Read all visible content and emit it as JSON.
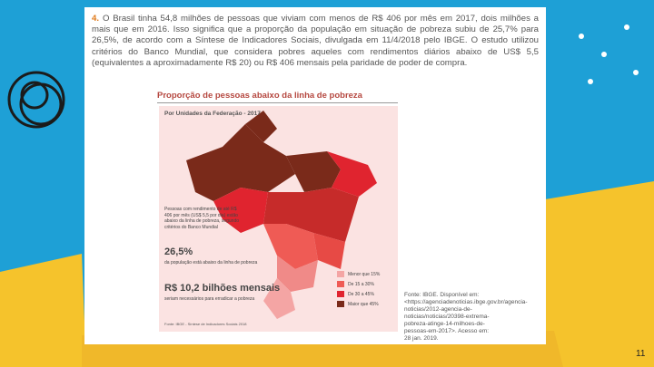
{
  "question": {
    "number": "4.",
    "text": "O Brasil tinha 54,8 milhões de pessoas que viviam com menos de R$ 406 por mês em 2017, dois milhões a mais que em 2016. Isso significa que a proporção da população em situação de pobreza subiu de 25,7% para 26,5%, de acordo com a Síntese de Indicadores Sociais, divulgada em 11/4/2018 pelo IBGE. O estudo utilizou critérios do Banco Mundial, que considera pobres aqueles com rendimentos diários abaixo de US$ 5,5 (equivalentes a aproximadamente R$ 20) ou R$ 406 mensais pela paridade de poder de compra."
  },
  "figure": {
    "title": "Proporção de pessoas abaixo da linha de pobreza",
    "subtitle": "Por Unidades da Federação - 2017",
    "note": "Pessoas com rendimento de até R$ 406 por mês (US$ 5,5 por dia) estão abaixo da linha de pobreza, segundo critérios do Banco Mundial",
    "stat_value": "26,5%",
    "stat_label": "da população está abaixo da linha de pobreza",
    "cost_value": "R$ 10,2 bilhões mensais",
    "cost_label": "seriam necessários para erradicar a pobreza",
    "legend": [
      "Menor que 15%",
      "De 15 a 30%",
      "De 30 a 45%",
      "Maior que 45%"
    ],
    "footer": "Fonte: IBGE - Síntese de Indicadores Sociais 2018"
  },
  "source": "Fonte: IBGE. Disponível em: <https://agenciadenoticias.ibge.gov.br/agencia-noticias/2012-agencia-de-noticias/noticias/20398-extrema-pobreza-atinge-14-milhoes-de-pessoas-em-2017>. Acesso em: 28 jan. 2019.",
  "page_number": "11"
}
